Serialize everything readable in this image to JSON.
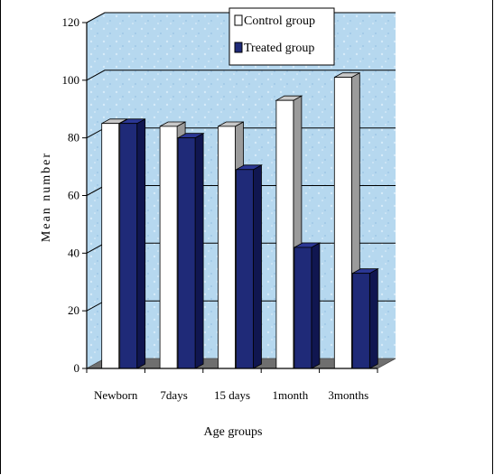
{
  "chart_data": {
    "type": "bar",
    "style": "3d-clustered-column",
    "title": "",
    "xlabel": "Age groups",
    "ylabel": "Mean number",
    "categories": [
      "Newborn",
      "7days",
      "15 days",
      "1month",
      "3months"
    ],
    "series": [
      {
        "name": "Control group",
        "values": [
          85,
          84,
          84,
          93,
          101
        ],
        "color": "#ffffff"
      },
      {
        "name": "Treated group",
        "values": [
          85,
          80,
          69,
          42,
          33
        ],
        "color": "#1f2a78"
      }
    ],
    "ylim": [
      0,
      120
    ],
    "yticks": [
      0,
      20,
      40,
      60,
      80,
      100,
      120
    ],
    "grid": true,
    "legend_position": "top-right",
    "colors": {
      "wall": "#b3d6ee",
      "floor": "#6f6f6f",
      "bar_side": "#9b9b9b",
      "bar_top": "#c8c8c8",
      "treated_side": "#101650",
      "treated_top": "#2b3795"
    }
  }
}
